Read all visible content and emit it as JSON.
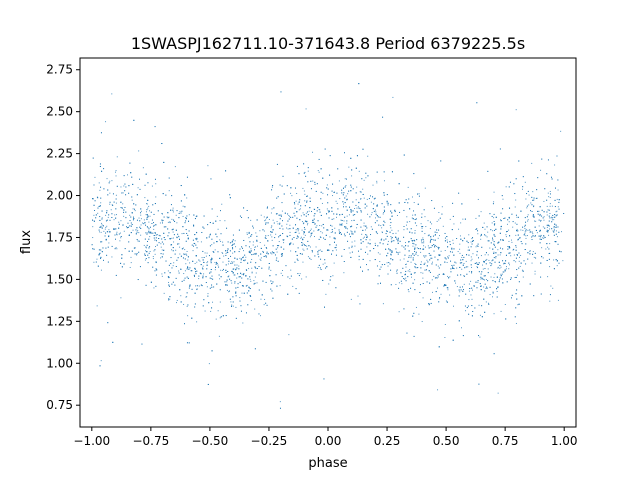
{
  "chart_data": {
    "type": "scatter",
    "title": "1SWASPJ162711.10-371643.8 Period 6379225.5s",
    "xlabel": "phase",
    "ylabel": "flux",
    "xlim": [
      -1.05,
      1.05
    ],
    "ylim": [
      0.62,
      2.82
    ],
    "x_ticks": [
      -1.0,
      -0.75,
      -0.5,
      -0.25,
      0.0,
      0.25,
      0.5,
      0.75,
      1.0
    ],
    "x_tick_labels": [
      "−1.00",
      "−0.75",
      "−0.50",
      "−0.25",
      "0.00",
      "0.25",
      "0.50",
      "0.75",
      "1.00"
    ],
    "y_ticks": [
      0.75,
      1.0,
      1.25,
      1.5,
      1.75,
      2.0,
      2.25,
      2.5,
      2.75
    ],
    "y_tick_labels": [
      "0.75",
      "1.00",
      "1.25",
      "1.50",
      "1.75",
      "2.00",
      "2.25",
      "2.50",
      "2.75"
    ],
    "grid": false,
    "legend": "none",
    "marker_color": "#1f77b4",
    "series": [
      {
        "profile_phase": [
          0.0,
          0.1,
          0.2,
          0.3,
          0.4,
          0.5,
          0.6,
          0.7,
          0.8,
          0.9,
          1.0
        ],
        "profile_mean_flux": [
          1.8,
          1.88,
          1.85,
          1.72,
          1.65,
          1.6,
          1.56,
          1.63,
          1.74,
          1.84,
          1.8
        ],
        "scatter_sigma": 0.15,
        "flux_min": 0.7,
        "flux_max": 2.76,
        "phase_range": [
          -1.0,
          1.0
        ]
      }
    ]
  }
}
